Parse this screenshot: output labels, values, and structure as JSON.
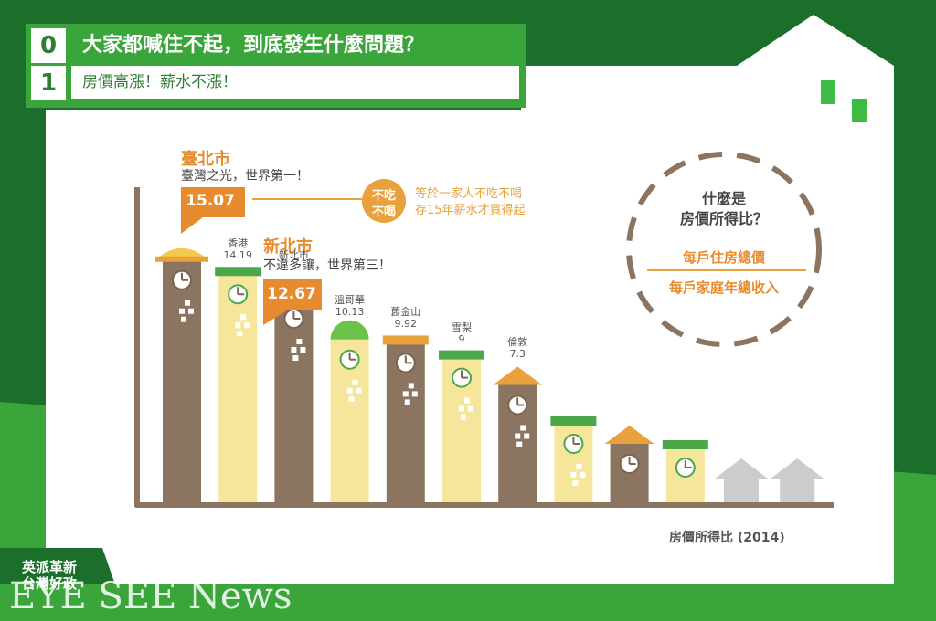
{
  "header": {
    "number_top": "0",
    "number_bottom": "1",
    "title": "大家都喊住不起，到底發生什麼問題？",
    "subtitle": "房價高漲！薪水不漲！"
  },
  "callouts": {
    "taipei": {
      "name": "臺北市",
      "desc": "臺灣之光，世界第一！",
      "value": "15.07",
      "badge_line1": "不吃",
      "badge_line2": "不喝",
      "note_line1": "等於一家人不吃不喝",
      "note_line2": "存15年薪水才買得起"
    },
    "newtaipei": {
      "name": "新北市",
      "desc": "不違多讓，世界第三！",
      "value": "12.67"
    }
  },
  "circle": {
    "question_line1": "什麼是",
    "question_line2": "房價所得比？",
    "numerator": "每戶住房總價",
    "denominator": "每戶家庭年總收入"
  },
  "chart_data": {
    "type": "bar",
    "title": "",
    "xlabel": "",
    "ylabel": "",
    "caption": "房價所得比 (2014)",
    "categories": [
      "臺北市",
      "香港",
      "新北市",
      "溫哥華",
      "舊金山",
      "雪梨",
      "倫敦",
      "",
      "",
      "",
      "",
      ""
    ],
    "values": [
      15.07,
      14.19,
      12.67,
      10.13,
      9.92,
      9,
      7.3,
      null,
      null,
      null,
      null,
      null
    ],
    "value_labels": [
      "",
      "14.19",
      "",
      "10.13",
      "9.92",
      "9",
      "7.3",
      "",
      "",
      "",
      "",
      ""
    ],
    "colors": [
      "#8b7560",
      "#f6e69b",
      "#8b7560",
      "#f6e69b",
      "#8b7560",
      "#f6e69b",
      "#8b7560",
      "#f6e69b",
      "#8b7560",
      "#f6e69b",
      "#cccccc",
      "#cccccc"
    ]
  },
  "brand": {
    "line1": "英派革新",
    "line2": "台灣好政",
    "watermark": "EYE SEE News"
  }
}
